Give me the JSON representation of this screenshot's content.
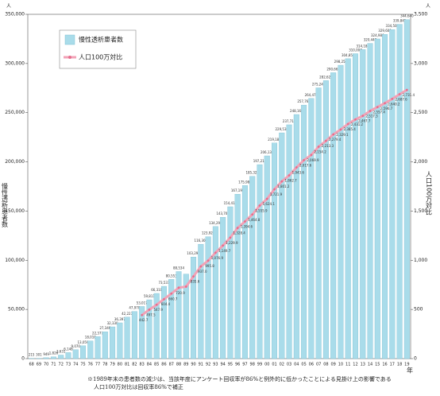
{
  "chart_data": {
    "type": "bar",
    "left_unit": "人",
    "right_unit": "人",
    "x_unit": "年",
    "ylabel": "慢性透析患者数",
    "y2label": "人口100万対比",
    "note_lines": [
      "※1989年末の患者数の減少は、当該年度にアンケート回収率が86%と例外的に低かったことによる見掛け上の影響である",
      "人口100万対比は回収率86%で補正"
    ],
    "categories": [
      "68",
      "69",
      "70",
      "71",
      "72",
      "73",
      "74",
      "75",
      "76",
      "77",
      "78",
      "79",
      "80",
      "81",
      "82",
      "83",
      "84",
      "85",
      "86",
      "87",
      "88",
      "89",
      "90",
      "91",
      "92",
      "93",
      "94",
      "95",
      "96",
      "97",
      "98",
      "99",
      "00",
      "01",
      "02",
      "03",
      "04",
      "05",
      "06",
      "07",
      "08",
      "09",
      "10",
      "11",
      "12",
      "13",
      "14",
      "15",
      "16",
      "17",
      "18",
      "19"
    ],
    "series": [
      {
        "name": "慢性透析患者数",
        "color": "#a9dcea",
        "values": [
          215,
          301,
          949,
          1826,
          3631,
          6148,
          9070,
          13059,
          18010,
          22377,
          27346,
          32330,
          36397,
          42223,
          47978,
          53017,
          59811,
          66310,
          73537,
          80553,
          88534,
          86000,
          103296,
          116303,
          123926,
          134298,
          143709,
          154413,
          167192,
          175988,
          185322,
          197213,
          206134,
          219183,
          229538,
          237710,
          248166,
          257765,
          264473,
          275242,
          282622,
          290661,
          298252,
          304856,
          310007,
          314180,
          320448,
          324986,
          329609,
          334505,
          339841,
          344640
        ],
        "value_labels": [
          "215",
          "301",
          "949",
          "1,826",
          "3,631",
          "6,148",
          "9,070",
          "13,059",
          "18,010",
          "22,377",
          "27,346",
          "32,330",
          "36,397",
          "42,223",
          "47,978",
          "53,017",
          "59,811",
          "66,310",
          "73,537",
          "80,553",
          "88,534",
          null,
          "103,296",
          "116,303",
          "123,926",
          "134,298",
          "143,709",
          "154,413",
          "167,192",
          "175,988",
          "185,322",
          "197,213",
          "206,134",
          "219,183",
          "229,538",
          "237,710",
          "248,166",
          "257,765",
          "264,473",
          "275,242",
          "282,622",
          "290,661",
          "298,252",
          "304,856",
          "310,007",
          "314,180",
          "320,448",
          "324,986",
          "329,609",
          "334,505",
          "339,841",
          "344,640"
        ]
      },
      {
        "name": "人口100万対比",
        "color": "#f2a2b6",
        "axis": "y2",
        "type": "line",
        "values": [
          null,
          null,
          null,
          null,
          null,
          null,
          null,
          null,
          null,
          null,
          null,
          null,
          null,
          null,
          null,
          442.7,
          497.5,
          547.9,
          604.4,
          660.7,
          720.9,
          732.0,
          835.6,
          937.0,
          995.8,
          1076.9,
          1149.7,
          1229.9,
          1328.4,
          1394.6,
          1464.8,
          1555.9,
          1624.1,
          1721.9,
          1801.2,
          1862.7,
          1943.6,
          2017.6,
          2069.9,
          2154.2,
          2213.3,
          2279.4,
          2329.1,
          2385.4,
          2431.2,
          2467.7,
          2517.3,
          2557.4,
          2596.7,
          2640.2,
          2687.6,
          2731.4
        ],
        "value_labels": [
          null,
          null,
          null,
          null,
          null,
          null,
          null,
          null,
          null,
          null,
          null,
          null,
          null,
          null,
          null,
          "442.7",
          "497.5",
          "547.9",
          "604.4",
          "660.7",
          "720.9",
          null,
          "835.6",
          "937.0",
          "995.8",
          "1,076.9",
          "1,149.7",
          "1,229.9",
          "1,328.4",
          "1,394.6",
          "1,464.8",
          "1,555.9",
          "1,624.1",
          "1,721.9",
          "1,801.2",
          "1,862.7",
          "1,943.6",
          "2,017.6",
          "2,069.9",
          "2,154.2",
          "2,213.3",
          "2,279.4",
          "2,329.1",
          "2,385.4",
          "2,431.2",
          "2,467.7",
          "2,517.3",
          "2,557.4",
          "2,596.7",
          "2,640.2",
          "2,687.6",
          "2,731.4"
        ]
      }
    ],
    "ylim": [
      0,
      350000
    ],
    "yticks": [
      0,
      {
        "value": 50000,
        "label": "50,000"
      },
      {
        "value": 100000,
        "label": "100,000"
      },
      {
        "value": 150000,
        "label": "150,000"
      },
      {
        "value": 200000,
        "label": "200,000"
      },
      {
        "value": 250000,
        "label": "250,000"
      },
      {
        "value": 300000,
        "label": "300,000"
      },
      {
        "value": 350000,
        "label": "350,000"
      }
    ],
    "y2lim": [
      0,
      3500
    ],
    "y2ticks": [
      0,
      500,
      {
        "value": 1000,
        "label": "1,000"
      },
      {
        "value": 1500,
        "label": "1,500"
      },
      {
        "value": 2000,
        "label": "2,000"
      },
      {
        "value": 2500,
        "label": "2,500"
      },
      {
        "value": 3000,
        "label": "3,000"
      },
      {
        "value": 3500,
        "label": "3,500"
      }
    ],
    "legend": "upper left"
  }
}
